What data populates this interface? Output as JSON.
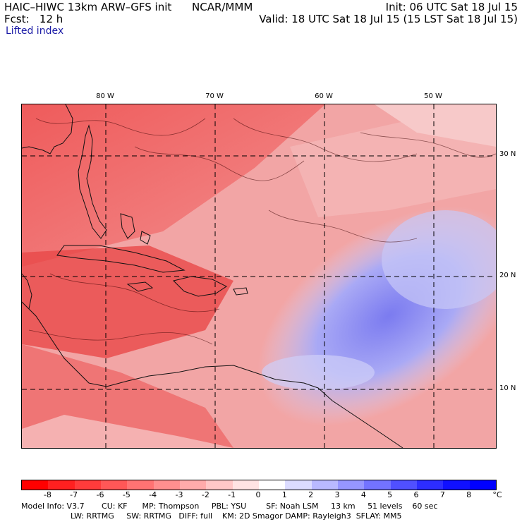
{
  "header": {
    "model": "HAIC–HIWC 13km ARW–GFS init",
    "org": "NCAR/MMM",
    "init": "Init: 06 UTC Sat 18 Jul 15",
    "fcst": "Fcst:   12 h",
    "valid": "Valid: 18 UTC Sat 18 Jul 15 (15 LST Sat 18 Jul 15)",
    "field": "Lifted index"
  },
  "lon_labels": [
    "80 W",
    "70 W",
    "60 W",
    "50 W"
  ],
  "lat_labels": [
    "30 N",
    "20 N",
    "10 N"
  ],
  "colorbar": {
    "ticks": [
      "-8",
      "-7",
      "-6",
      "-5",
      "-4",
      "-3",
      "-2",
      "-1",
      "0",
      "1",
      "2",
      "3",
      "4",
      "5",
      "6",
      "7",
      "8"
    ],
    "unit": "°C",
    "colors": [
      "#ff0000",
      "#ff2020",
      "#ff3b3b",
      "#ff5757",
      "#ff7373",
      "#ff8f8f",
      "#ffabab",
      "#ffc7c7",
      "#ffe3e3",
      "#ffffff",
      "#dcdcff",
      "#b9b9ff",
      "#9696ff",
      "#7373ff",
      "#5050ff",
      "#2d2dff",
      "#1010ff",
      "#0000ff"
    ]
  },
  "footer": {
    "line1": "Model Info: V3.7       CU: KF      MP: Thompson     PBL: YSU        SF: Noah LSM     13 km     51 levels    60 sec",
    "line2": "LW: RRTMG     SW: RRTMG   DIFF: full    KM: 2D Smagor DAMP: Rayleigh3  SFLAY: MM5"
  }
}
